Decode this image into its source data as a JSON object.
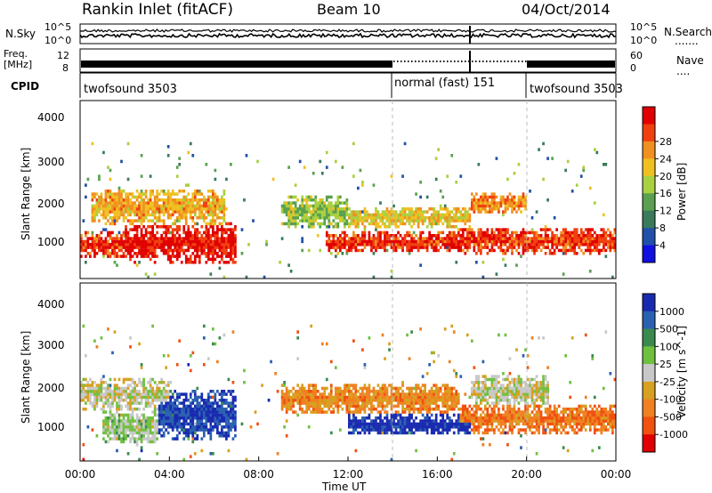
{
  "header": {
    "title": "Rankin Inlet (fitACF)",
    "beam": "Beam 10",
    "date": "04/Oct/2014"
  },
  "strips": {
    "nsky_label": "N.Sky",
    "nsky_ticks": [
      "10^5",
      "10^0"
    ],
    "nsearch_label": "N.Search",
    "nsearch_ticks": [
      "10^5",
      "10^0"
    ],
    "nsearch_dots": ".......",
    "freq_label_1": "Freq.",
    "freq_label_2": "[MHz]",
    "freq_ticks": [
      "12",
      "8"
    ],
    "nave_label": "Nave",
    "nave_ticks": [
      "60",
      "0"
    ],
    "nave_dots": "....",
    "cpid_label": "CPID",
    "cpid_segments": [
      {
        "label": "twofsound 3503",
        "start_h": 0,
        "end_h": 14.0
      },
      {
        "label": "normal (fast) 151",
        "start_h": 14.0,
        "end_h": 20.0
      },
      {
        "label": "twofsound 3503",
        "start_h": 20.0,
        "end_h": 24.0
      }
    ]
  },
  "power_panel": {
    "ylabel": "Slant Range [km]",
    "yticks": [
      "1000",
      "2000",
      "3000",
      "4000"
    ],
    "colorbar_label": "Power [dB]",
    "colorbar_ticks": [
      "4",
      "8",
      "12",
      "16",
      "20",
      "24",
      "28"
    ],
    "colors": [
      "#1010e0",
      "#2050a8",
      "#3a7a5a",
      "#5aa050",
      "#a8d040",
      "#f0c020",
      "#f09020",
      "#f04010",
      "#e00000"
    ]
  },
  "velocity_panel": {
    "ylabel": "Slant Range [km]",
    "yticks": [
      "1000",
      "2000",
      "3000",
      "4000"
    ],
    "colorbar_label": "Velocity [m s^-1]",
    "colorbar_ticks": [
      "1000",
      "500",
      "100",
      "25",
      "-25",
      "-100",
      "-500",
      "-1000"
    ],
    "colors": [
      "#1a2ab0",
      "#2a60b0",
      "#3a8a50",
      "#70c040",
      "#c8c8c8",
      "#d8a020",
      "#f08020",
      "#f05010",
      "#e00000"
    ]
  },
  "xaxis": {
    "label": "Time UT",
    "ticks": [
      "00:00",
      "04:00",
      "08:00",
      "12:00",
      "16:00",
      "20:00",
      "00:00"
    ]
  },
  "chart_data": [
    {
      "type": "heatmap",
      "title": "Rankin Inlet (fitACF) Beam 10 04/Oct/2014",
      "xlabel": "Time UT",
      "ylabel": "Slant Range [km]",
      "xlim_hours": [
        0,
        24
      ],
      "ylim_km": [
        180,
        4500
      ],
      "quantity": "Power [dB]",
      "color_range": [
        0,
        30
      ],
      "bands": [
        {
          "start_h": 0.0,
          "end_h": 2.0,
          "center_km": 1000,
          "half_width_km": 250,
          "value_db": 26
        },
        {
          "start_h": 2.0,
          "end_h": 7.0,
          "center_km": 1050,
          "half_width_km": 400,
          "value_db": 28
        },
        {
          "start_h": 0.5,
          "end_h": 6.5,
          "center_km": 1900,
          "half_width_km": 350,
          "value_db": 20
        },
        {
          "start_h": 9.0,
          "end_h": 12.0,
          "center_km": 1800,
          "half_width_km": 300,
          "value_db": 14
        },
        {
          "start_h": 11.0,
          "end_h": 17.0,
          "center_km": 1050,
          "half_width_km": 200,
          "value_db": 26
        },
        {
          "start_h": 12.0,
          "end_h": 17.5,
          "center_km": 1650,
          "half_width_km": 200,
          "value_db": 18
        },
        {
          "start_h": 17.5,
          "end_h": 20.0,
          "center_km": 2000,
          "half_width_km": 200,
          "value_db": 22
        },
        {
          "start_h": 17.0,
          "end_h": 24.0,
          "center_km": 1100,
          "half_width_km": 250,
          "value_db": 26
        }
      ]
    },
    {
      "type": "heatmap",
      "xlabel": "Time UT",
      "ylabel": "Slant Range [km]",
      "xlim_hours": [
        0,
        24
      ],
      "ylim_km": [
        180,
        4500
      ],
      "quantity": "Velocity [m s^-1]",
      "color_range": [
        -1000,
        1000
      ],
      "bands": [
        {
          "start_h": 0.0,
          "end_h": 4.0,
          "center_km": 1800,
          "half_width_km": 300,
          "value_ms": 0
        },
        {
          "start_h": 3.5,
          "end_h": 7.0,
          "center_km": 1300,
          "half_width_km": 500,
          "value_ms": 800
        },
        {
          "start_h": 1.0,
          "end_h": 3.5,
          "center_km": 1000,
          "half_width_km": 300,
          "value_ms": 120
        },
        {
          "start_h": 9.0,
          "end_h": 17.0,
          "center_km": 1700,
          "half_width_km": 300,
          "value_ms": -400
        },
        {
          "start_h": 12.0,
          "end_h": 17.5,
          "center_km": 1050,
          "half_width_km": 200,
          "value_ms": 900
        },
        {
          "start_h": 17.5,
          "end_h": 21.0,
          "center_km": 1900,
          "half_width_km": 300,
          "value_ms": 0
        },
        {
          "start_h": 17.0,
          "end_h": 24.0,
          "center_km": 1200,
          "half_width_km": 300,
          "value_ms": -500
        }
      ]
    }
  ]
}
